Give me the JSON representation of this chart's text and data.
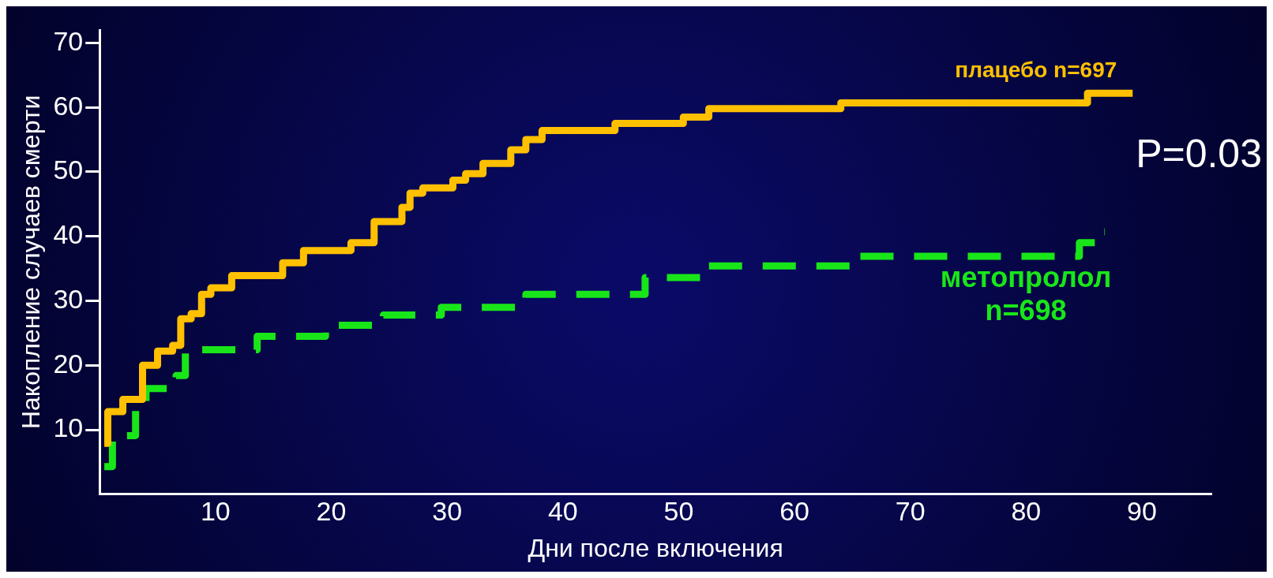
{
  "chart_data": {
    "type": "step",
    "xlabel": "Дни после включения",
    "ylabel": "Накопление случаев смерти",
    "xlim": [
      0,
      96
    ],
    "xticks": [
      10,
      20,
      30,
      40,
      50,
      60,
      70,
      80,
      90
    ],
    "ylim": [
      0,
      72
    ],
    "yticks": [
      10,
      20,
      30,
      40,
      50,
      60,
      70
    ],
    "grid": false,
    "legend": false,
    "annotations": [
      "P=0.03"
    ],
    "series": [
      {
        "name": "плацебо n=697",
        "color": "#ffc000",
        "line_style": "solid",
        "x": [
          0.4,
          0.7,
          2.0,
          3.7,
          5.0,
          6.3,
          7.0,
          7.9,
          8.8,
          9.6,
          11.4,
          15.8,
          17.6,
          21.7,
          23.7,
          26.1,
          26.8,
          27.9,
          30.5,
          31.6,
          33.1,
          35.5,
          36.8,
          38.2,
          44.5,
          50.4,
          52.6,
          64.0,
          85.3,
          89.2
        ],
        "values": [
          7.9,
          12.8,
          14.7,
          20,
          22.2,
          23.1,
          27.2,
          28,
          31,
          32,
          33.9,
          35.9,
          37.8,
          39,
          42.3,
          44.5,
          46.7,
          47.5,
          48.7,
          49.7,
          51.3,
          53.4,
          55,
          56.4,
          57.5,
          58.5,
          59.8,
          60.7,
          62.2,
          62.2
        ]
      },
      {
        "name": "метопролол n=698",
        "color": "#19e619",
        "line_style": "dashed",
        "x": [
          0.4,
          1.1,
          3.1,
          4.0,
          6.6,
          7.4,
          13.6,
          19.5,
          24.5,
          29.5,
          36.8,
          47.1,
          52.6,
          65.1,
          84.6,
          86.0,
          86.8
        ],
        "values": [
          4.3,
          9.1,
          13.7,
          16.4,
          18.4,
          22.4,
          24.5,
          26.2,
          27.8,
          29,
          31,
          33.6,
          35.4,
          36.9,
          39,
          40.7,
          40.7
        ]
      }
    ]
  }
}
